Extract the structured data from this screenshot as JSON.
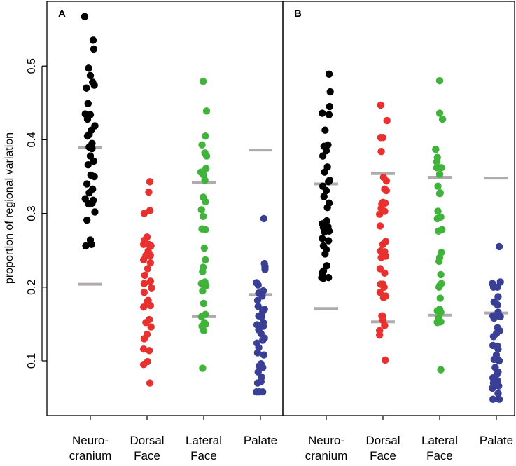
{
  "chart_data": {
    "type": "scatter",
    "ylabel": "proportion of regional variation",
    "ylim": [
      0.03,
      0.6
    ],
    "y_ticks": [
      0.1,
      0.2,
      0.3,
      0.4,
      0.5
    ],
    "y_tick_labels": [
      "0.1",
      "0.2",
      "0.3",
      "0.4",
      "0.5"
    ],
    "categories": [
      {
        "lines": [
          "Neuro-",
          "cranium"
        ]
      },
      {
        "lines": [
          "Dorsal",
          "Face"
        ]
      },
      {
        "lines": [
          "Lateral",
          "Face"
        ]
      },
      {
        "lines": [
          "Palate"
        ]
      }
    ],
    "colors": [
      "#000000",
      "#e8312f",
      "#3fb33a",
      "#3a3f96"
    ],
    "reference_color": "#b0aaae",
    "panels": [
      {
        "label": "A",
        "series": [
          {
            "category": "Neuro-cranium",
            "offsets": [
              -0.1,
              0.05,
              0.06,
              -0.03,
              0.0,
              -0.07,
              0.04,
              -0.04,
              0.07,
              0.0,
              -0.09,
              -0.05,
              0.08,
              0.02,
              -0.02,
              -0.05,
              0.03,
              -0.02,
              0.03,
              0.0,
              0.06,
              -0.04,
              0.01,
              0.07,
              -0.06,
              0.04,
              -0.02,
              -0.09,
              0.05,
              -0.03,
              0.08,
              0.03,
              -0.06,
              0.0,
              0.02,
              -0.08
            ],
            "values": [
              0.567,
              0.535,
              0.523,
              0.497,
              0.487,
              0.47,
              0.478,
              0.449,
              0.474,
              0.434,
              0.435,
              0.428,
              0.419,
              0.413,
              0.407,
              0.405,
              0.395,
              0.39,
              0.388,
              0.378,
              0.371,
              0.366,
              0.352,
              0.35,
              0.34,
              0.333,
              0.328,
              0.32,
              0.318,
              0.313,
              0.302,
              0.314,
              0.291,
              0.264,
              0.258,
              0.256
            ],
            "refs": [
              0.389,
              0.204
            ]
          },
          {
            "category": "Dorsal Face",
            "offsets": [
              0.05,
              0.03,
              -0.05,
              0.05,
              0.0,
              -0.04,
              0.03,
              -0.06,
              0.07,
              0.02,
              -0.02,
              0.06,
              -0.06,
              0.06,
              0.01,
              -0.04,
              0.06,
              -0.05,
              0.08,
              -0.05,
              0.0,
              0.02,
              0.06,
              -0.06,
              0.04,
              -0.02,
              0.07,
              0.0,
              -0.05,
              0.04,
              -0.06,
              0.01,
              -0.06,
              0.05
            ],
            "values": [
              0.343,
              0.329,
              0.3,
              0.304,
              0.268,
              0.264,
              0.258,
              0.258,
              0.256,
              0.249,
              0.243,
              0.243,
              0.237,
              0.233,
              0.225,
              0.216,
              0.208,
              0.205,
              0.199,
              0.193,
              0.18,
              0.182,
              0.175,
              0.173,
              0.156,
              0.152,
              0.146,
              0.136,
              0.13,
              0.114,
              0.116,
              0.099,
              0.095,
              0.07
            ]
          },
          {
            "category": "Lateral Face",
            "offsets": [
              -0.01,
              0.05,
              0.03,
              -0.03,
              0.02,
              0.05,
              0.04,
              -0.05,
              0.0,
              0.02,
              -0.01,
              0.03,
              -0.04,
              -0.01,
              -0.03,
              0.03,
              0.01,
              0.03,
              -0.01,
              -0.02,
              -0.04,
              0.02,
              0.04,
              -0.02,
              0.0,
              0.03,
              -0.04,
              0.01,
              -0.03,
              0.0,
              0.03,
              -0.02
            ],
            "values": [
              0.479,
              0.439,
              0.405,
              0.393,
              0.382,
              0.378,
              0.361,
              0.356,
              0.352,
              0.345,
              0.322,
              0.316,
              0.305,
              0.296,
              0.279,
              0.278,
              0.253,
              0.237,
              0.227,
              0.221,
              0.205,
              0.207,
              0.202,
              0.195,
              0.178,
              0.163,
              0.16,
              0.152,
              0.147,
              0.141,
              0.15,
              0.09
            ],
            "refs": [
              0.342,
              0.16
            ]
          },
          {
            "category": "Palate",
            "offsets": [
              0.06,
              0.07,
              0.08,
              0.08,
              -0.07,
              -0.04,
              0.05,
              -0.03,
              0.03,
              -0.05,
              0.07,
              -0.04,
              0.04,
              -0.03,
              0.02,
              0.05,
              -0.06,
              0.05,
              -0.03,
              0.01,
              0.07,
              -0.06,
              0.04,
              -0.03,
              -0.05,
              0.06,
              0.01,
              -0.02,
              0.04,
              -0.04,
              0.02,
              0.01,
              -0.05,
              0.04,
              -0.07,
              -0.02
            ],
            "values": [
              0.293,
              0.232,
              0.228,
              0.224,
              0.206,
              0.203,
              0.195,
              0.192,
              0.188,
              0.182,
              0.17,
              0.174,
              0.167,
              0.161,
              0.16,
              0.152,
              0.149,
              0.147,
              0.142,
              0.137,
              0.131,
              0.124,
              0.128,
              0.118,
              0.111,
              0.108,
              0.096,
              0.093,
              0.091,
              0.085,
              0.078,
              0.072,
              0.07,
              0.058,
              0.058,
              0.058
            ],
            "refs": [
              0.386,
              0.19
            ]
          }
        ]
      },
      {
        "label": "B",
        "series": [
          {
            "category": "Neuro-cranium",
            "offsets": [
              0.05,
              0.07,
              0.06,
              -0.07,
              0.05,
              -0.02,
              0.03,
              -0.04,
              0.0,
              -0.06,
              0.02,
              -0.03,
              0.06,
              0.04,
              -0.06,
              0.0,
              -0.04,
              0.05,
              0.02,
              0.01,
              -0.07,
              0.03,
              -0.05,
              -0.03,
              0.05,
              -0.07,
              0.04,
              -0.05,
              0.0,
              -0.02,
              0.01,
              -0.05,
              0.04,
              -0.05,
              -0.08,
              -0.07
            ],
            "values": [
              0.489,
              0.465,
              0.445,
              0.436,
              0.434,
              0.413,
              0.393,
              0.391,
              0.385,
              0.378,
              0.363,
              0.356,
              0.345,
              0.343,
              0.337,
              0.331,
              0.323,
              0.314,
              0.308,
              0.29,
              0.286,
              0.282,
              0.281,
              0.275,
              0.276,
              0.266,
              0.263,
              0.256,
              0.251,
              0.245,
              0.229,
              0.222,
              0.213,
              0.212,
              0.213,
              0.219
            ],
            "refs": [
              0.34,
              0.171
            ]
          },
          {
            "category": "Dorsal Face",
            "offsets": [
              -0.04,
              0.07,
              -0.04,
              0.0,
              -0.03,
              0.06,
              0.01,
              0.03,
              0.06,
              0.0,
              -0.02,
              0.04,
              -0.03,
              0.03,
              -0.06,
              -0.05,
              0.05,
              0.0,
              -0.04,
              0.03,
              0.05,
              -0.03,
              -0.05,
              0.03,
              0.0,
              -0.04,
              0.02,
              -0.05,
              0.05,
              0.01,
              -0.02,
              0.03,
              -0.06,
              -0.06,
              -0.01,
              0.0,
              0.04
            ],
            "values": [
              0.447,
              0.426,
              0.403,
              0.403,
              0.384,
              0.344,
              0.349,
              0.333,
              0.331,
              0.315,
              0.313,
              0.314,
              0.307,
              0.303,
              0.299,
              0.283,
              0.262,
              0.258,
              0.249,
              0.248,
              0.242,
              0.24,
              0.225,
              0.219,
              0.204,
              0.204,
              0.2,
              0.193,
              0.188,
              0.186,
              0.161,
              0.148,
              0.135,
              0.141,
              0.161,
              0.155,
              0.101
            ],
            "refs": [
              0.354,
              0.153
            ]
          },
          {
            "category": "Lateral Face",
            "offsets": [
              0.0,
              0.05,
              0.0,
              -0.07,
              -0.04,
              -0.05,
              0.03,
              -0.05,
              0.0,
              -0.03,
              0.01,
              0.0,
              -0.03,
              -0.04,
              0.02,
              0.04,
              -0.02,
              0.03,
              0.0,
              -0.01,
              0.02,
              0.03,
              0.0,
              -0.01,
              0.01,
              0.0,
              -0.04,
              0.02,
              -0.02,
              -0.04,
              0.02,
              -0.02,
              -0.04,
              0.02
            ],
            "values": [
              0.48,
              0.428,
              0.436,
              0.387,
              0.376,
              0.37,
              0.362,
              0.362,
              0.353,
              0.337,
              0.328,
              0.327,
              0.303,
              0.293,
              0.295,
              0.278,
              0.276,
              0.247,
              0.24,
              0.235,
              0.217,
              0.205,
              0.202,
              0.2,
              0.185,
              0.17,
              0.168,
              0.166,
              0.158,
              0.153,
              0.153,
              0.158,
              0.152,
              0.088
            ],
            "refs": [
              0.349,
              0.162
            ]
          },
          {
            "category": "Palate",
            "offsets": [
              0.05,
              0.07,
              -0.07,
              0.02,
              -0.05,
              0.03,
              -0.04,
              0.02,
              0.03,
              -0.06,
              0.07,
              -0.04,
              0.02,
              0.06,
              0.0,
              -0.05,
              0.02,
              -0.06,
              0.03,
              0.0,
              -0.04,
              0.05,
              -0.02,
              0.03,
              0.01,
              -0.06,
              0.02,
              -0.03,
              -0.05,
              0.04,
              -0.07,
              0.03,
              -0.06,
              0.05
            ],
            "values": [
              0.255,
              0.207,
              0.205,
              0.2,
              0.2,
              0.187,
              0.18,
              0.176,
              0.166,
              0.161,
              0.16,
              0.158,
              0.145,
              0.141,
              0.137,
              0.133,
              0.12,
              0.121,
              0.116,
              0.108,
              0.102,
              0.1,
              0.091,
              0.085,
              0.082,
              0.077,
              0.073,
              0.075,
              0.07,
              0.066,
              0.063,
              0.056,
              0.048,
              0.048
            ],
            "refs": [
              0.348,
              0.165
            ]
          }
        ]
      }
    ]
  }
}
